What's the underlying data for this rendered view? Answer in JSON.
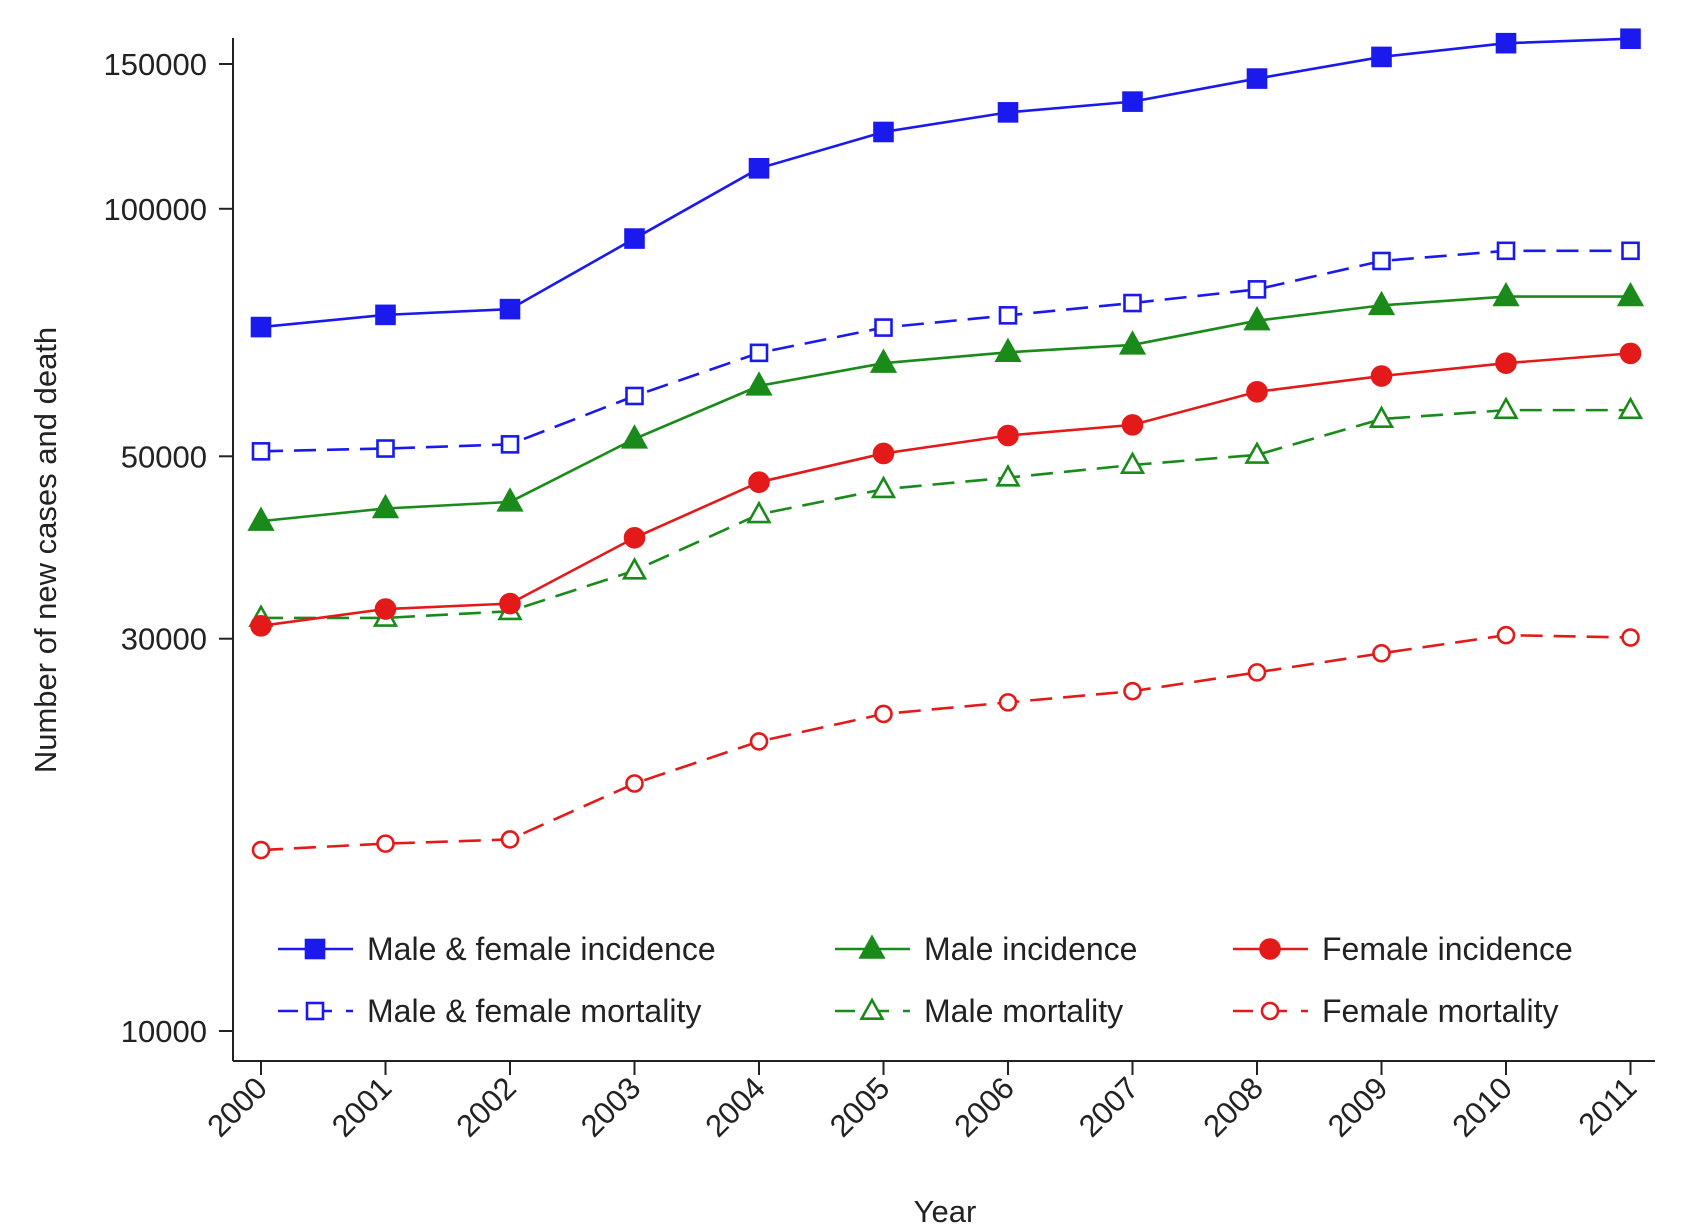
{
  "chart_data": {
    "type": "line",
    "yscale": "log",
    "xlabel": "Year",
    "ylabel": "Number of new cases and death",
    "x": [
      "2000",
      "2001",
      "2002",
      "2003",
      "2004",
      "2005",
      "2006",
      "2007",
      "2008",
      "2009",
      "2010",
      "2011"
    ],
    "yticks": [
      10000,
      30000,
      50000,
      100000,
      150000
    ],
    "ytick_labels": [
      "10000",
      "30000",
      "50000",
      "100000",
      "150000"
    ],
    "ylim": [
      9300,
      158000
    ],
    "series": [
      {
        "id": "mf-inc",
        "name": "Male & female incidence",
        "color": "#1a1aee",
        "dashed": false,
        "marker": "square-filled",
        "values": [
          71800,
          74300,
          75500,
          92000,
          112000,
          124000,
          131000,
          135000,
          144000,
          153000,
          159000,
          161000
        ]
      },
      {
        "id": "mf-mort",
        "name": "Male & female mortality",
        "color": "#1a1aee",
        "dashed": true,
        "marker": "square-open",
        "values": [
          50700,
          51100,
          51700,
          59200,
          66800,
          71700,
          74200,
          76800,
          79800,
          86400,
          88900,
          88900
        ]
      },
      {
        "id": "m-inc",
        "name": "Male incidence",
        "color": "#1a8a1a",
        "dashed": false,
        "marker": "triangle-filled",
        "values": [
          41700,
          43200,
          44000,
          52500,
          60900,
          64900,
          66900,
          68300,
          73100,
          76300,
          78200,
          78200
        ]
      },
      {
        "id": "m-mort",
        "name": "Male mortality",
        "color": "#1a8a1a",
        "dashed": true,
        "marker": "triangle-open",
        "values": [
          31800,
          31800,
          32400,
          36300,
          42500,
          45600,
          47100,
          48800,
          50200,
          55500,
          56900,
          56900
        ]
      },
      {
        "id": "f-inc",
        "name": "Female incidence",
        "color": "#e41a1a",
        "dashed": false,
        "marker": "circle-filled",
        "values": [
          31100,
          32600,
          33100,
          39800,
          46500,
          50400,
          53000,
          54600,
          59900,
          62600,
          64900,
          66700
        ]
      },
      {
        "id": "f-mort",
        "name": "Female mortality",
        "color": "#e41a1a",
        "dashed": true,
        "marker": "circle-open",
        "values": [
          16600,
          16900,
          17100,
          20000,
          22500,
          24300,
          25100,
          25900,
          27300,
          28800,
          30300,
          30100
        ]
      }
    ],
    "legend": {
      "position": "bottom-inside",
      "columns": 3,
      "order": [
        "mf-inc",
        "m-inc",
        "f-inc",
        "mf-mort",
        "m-mort",
        "f-mort"
      ]
    },
    "grid": false
  }
}
